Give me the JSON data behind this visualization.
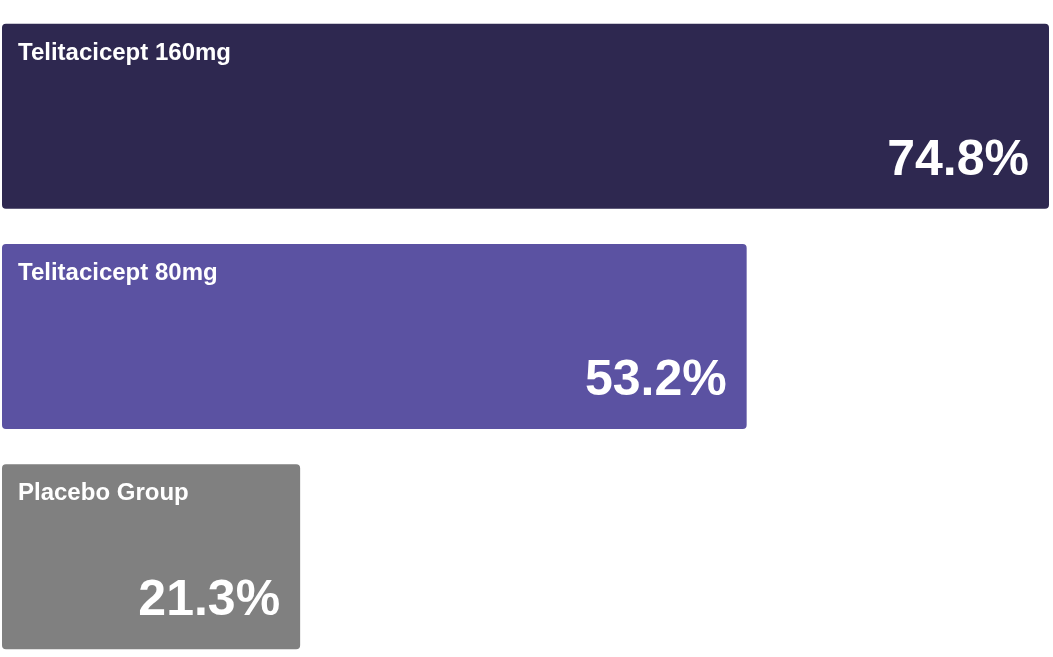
{
  "chart_data": {
    "type": "bar",
    "orientation": "horizontal",
    "categories": [
      "Telitacicept 160mg",
      "Telitacicept 80mg",
      "Placebo Group"
    ],
    "values": [
      74.8,
      53.2,
      21.3
    ],
    "colors": [
      "#2e2850",
      "#5b52a2",
      "#808080"
    ],
    "value_labels": [
      "74.8%",
      "53.2%",
      "21.3%"
    ],
    "tick_labels": false
  }
}
